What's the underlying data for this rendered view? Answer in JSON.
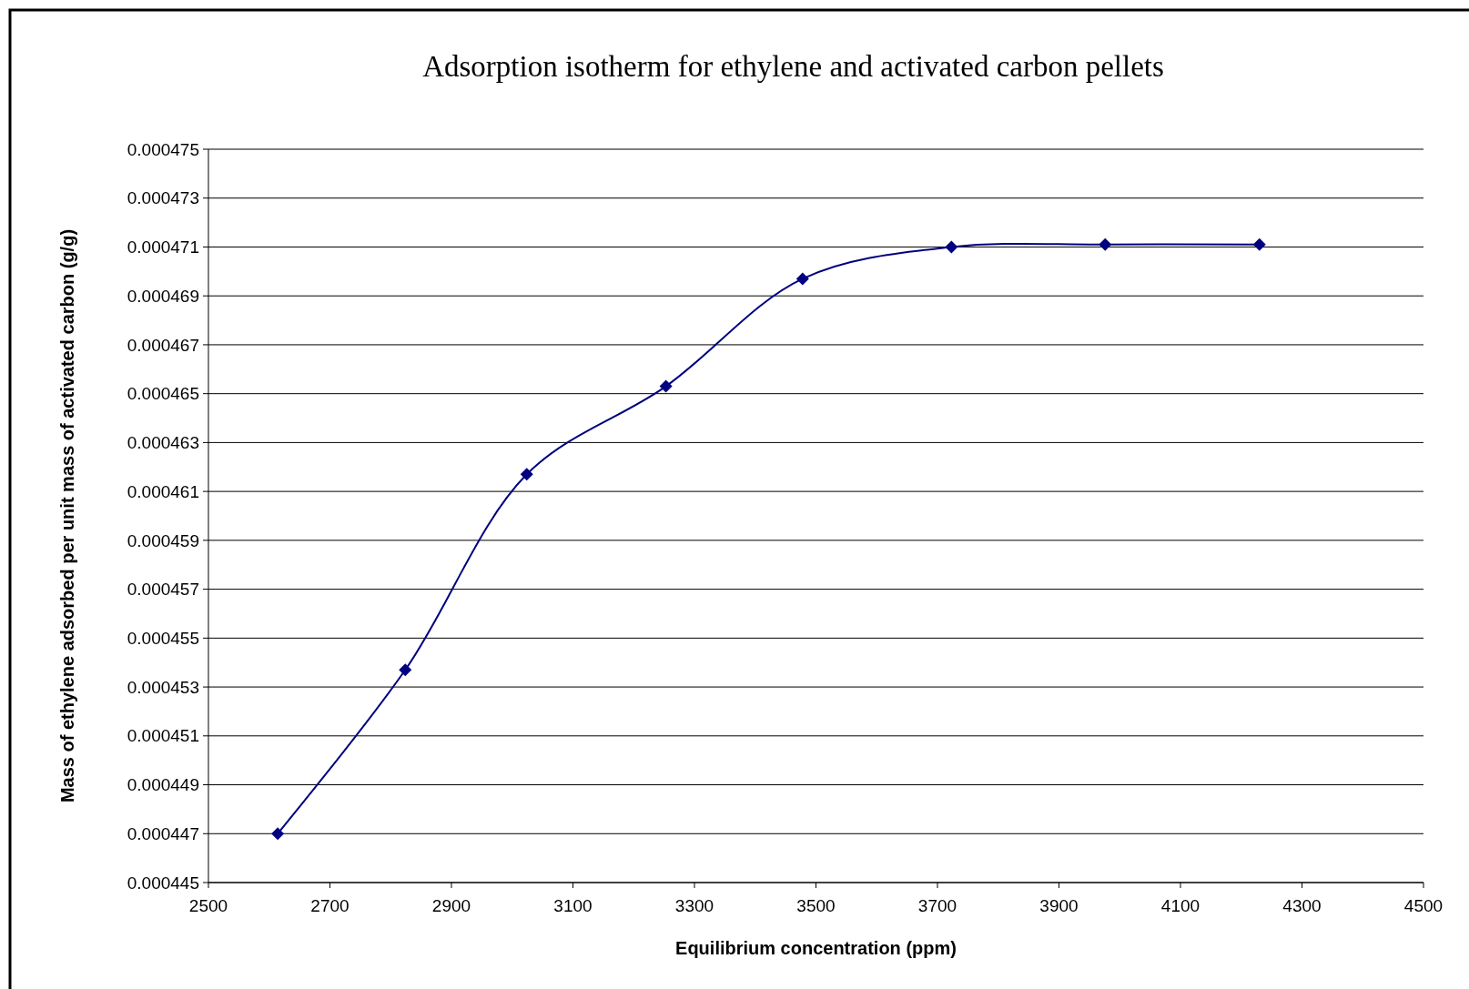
{
  "chart_data": {
    "type": "line",
    "title": "Adsorption isotherm for ethylene and activated carbon pellets",
    "xlabel": "Equilibrium concentration (ppm)",
    "ylabel": "Mass of ethylene adsorbed per unit mass of activated carbon (g/g)",
    "x": [
      2614,
      2824,
      3024,
      3253,
      3478,
      3723,
      3976,
      4230
    ],
    "series": [
      {
        "color": "#000080",
        "values": [
          0.000447,
          0.0004537,
          0.0004617,
          0.0004653,
          0.0004697,
          0.000471,
          0.0004711,
          0.0004711
        ]
      }
    ],
    "xlim": [
      2500,
      4500
    ],
    "xticks": [
      2500,
      2700,
      2900,
      3100,
      3300,
      3500,
      3700,
      3900,
      4100,
      4300,
      4500
    ],
    "ylim": [
      0.000445,
      0.000475
    ],
    "yticks": [
      0.000445,
      0.000447,
      0.000449,
      0.000451,
      0.000453,
      0.000455,
      0.000457,
      0.000459,
      0.000461,
      0.000463,
      0.000465,
      0.000467,
      0.000469,
      0.000471,
      0.000473,
      0.000475
    ],
    "grid": "y",
    "marker": "diamond",
    "line_style": "solid"
  }
}
